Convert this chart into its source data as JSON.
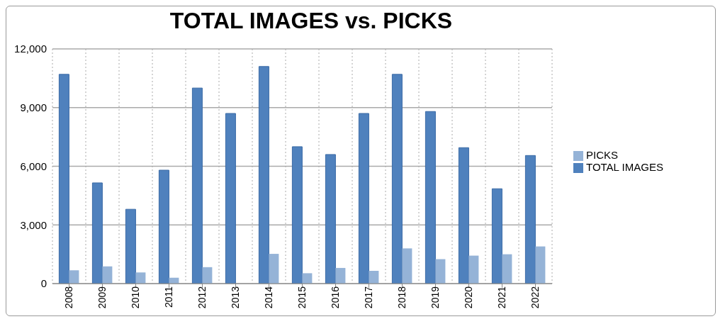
{
  "chart_data": {
    "type": "bar",
    "title": "TOTAL IMAGES vs. PICKS",
    "categories": [
      "2008",
      "2009",
      "2010",
      "2011",
      "2012",
      "2013",
      "2014",
      "2015",
      "2016",
      "2017",
      "2018",
      "2019",
      "2020",
      "2021",
      "2022"
    ],
    "series": [
      {
        "name": "TOTAL IMAGES",
        "color": "#4f81bd",
        "values": [
          10700,
          5150,
          3800,
          5800,
          10000,
          8700,
          11100,
          7000,
          6600,
          8700,
          10700,
          8800,
          6950,
          4850,
          6550
        ]
      },
      {
        "name": "PICKS",
        "color": "#95b3d7",
        "values": [
          680,
          880,
          570,
          300,
          840,
          0,
          1520,
          530,
          800,
          650,
          1800,
          1250,
          1430,
          1500,
          1900
        ]
      }
    ],
    "ylim": [
      0,
      12000
    ],
    "yticks": [
      {
        "value": 0,
        "label": "0"
      },
      {
        "value": 3000,
        "label": "3,000"
      },
      {
        "value": 6000,
        "label": "6,000"
      },
      {
        "value": 9000,
        "label": "9,000"
      },
      {
        "value": 12000,
        "label": "12,000"
      }
    ],
    "grid": true,
    "legend": "right"
  }
}
